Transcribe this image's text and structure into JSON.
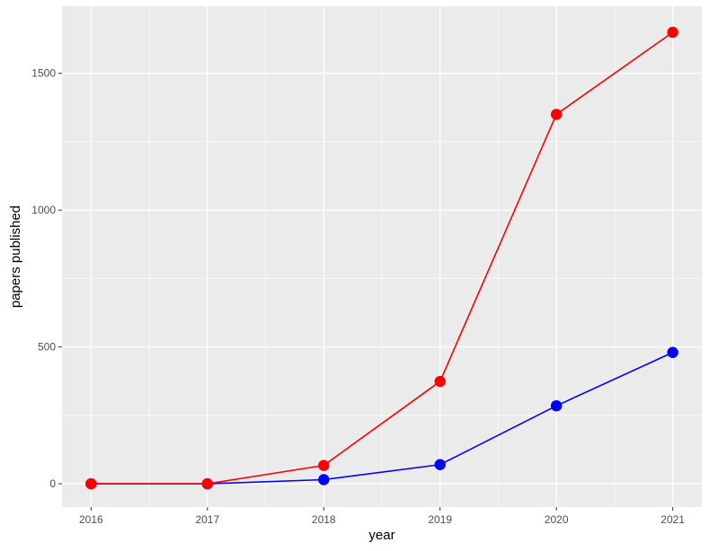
{
  "chart_data": {
    "type": "line",
    "xlabel": "year",
    "ylabel": "papers published",
    "x": [
      2016,
      2017,
      2018,
      2019,
      2020,
      2021
    ],
    "xlim": [
      2015.75,
      2021.25
    ],
    "ylim": [
      -85,
      1745
    ],
    "x_ticks": [
      2016,
      2017,
      2018,
      2019,
      2020,
      2021
    ],
    "y_ticks": [
      0,
      500,
      1000,
      1500
    ],
    "y_minor_ticks": [
      250,
      750,
      1250
    ],
    "x_minor_ticks": [
      2016.5,
      2017.5,
      2018.5,
      2019.5,
      2020.5
    ],
    "grid": true,
    "panel_background": "#ebebeb",
    "series": [
      {
        "color": "#0000ff",
        "values": [
          0,
          0,
          15,
          70,
          285,
          480
        ]
      },
      {
        "color": "#ff0000",
        "values": [
          0,
          0,
          67,
          374,
          1350,
          1650
        ]
      }
    ]
  }
}
